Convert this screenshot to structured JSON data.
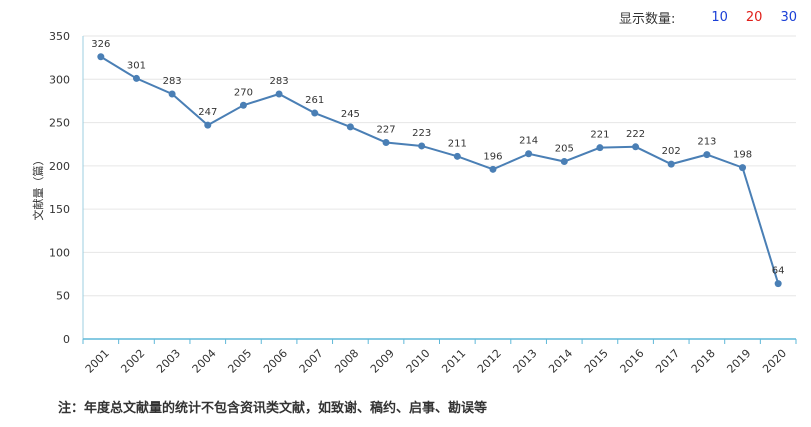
{
  "controls": {
    "label": "显示数量:",
    "options": [
      {
        "value": "10",
        "color": "#1a3fd6"
      },
      {
        "value": "20",
        "color": "#e0201a"
      },
      {
        "value": "30",
        "color": "#1a3fd6"
      }
    ]
  },
  "chart_data": {
    "type": "line",
    "ylabel": "文献量（篇）",
    "ylim": [
      0,
      350
    ],
    "yticks": [
      0,
      50,
      100,
      150,
      200,
      250,
      300,
      350
    ],
    "categories": [
      "2001",
      "2002",
      "2003",
      "2004",
      "2005",
      "2006",
      "2007",
      "2008",
      "2009",
      "2010",
      "2011",
      "2012",
      "2013",
      "2014",
      "2015",
      "2016",
      "2017",
      "2018",
      "2019",
      "2020"
    ],
    "values": [
      326,
      301,
      283,
      247,
      270,
      283,
      261,
      245,
      227,
      223,
      211,
      196,
      214,
      205,
      221,
      222,
      202,
      213,
      198,
      64
    ],
    "line_color": "#4a7fb5",
    "grid": "horizontal"
  },
  "note": "注：年度总文献量的统计不包含资讯类文献，如致谢、稿约、启事、勘误等"
}
